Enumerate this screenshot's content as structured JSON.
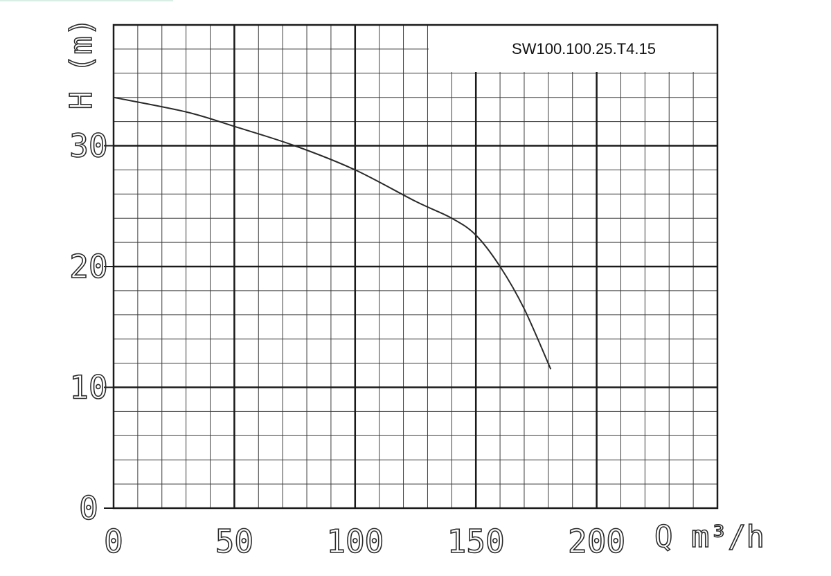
{
  "chart_data": {
    "type": "line",
    "title": "SW100.100.25.T4.15",
    "xlabel": "Q m³/h",
    "ylabel": "H (m)",
    "xlim": [
      0,
      250
    ],
    "ylim": [
      0,
      40
    ],
    "x_ticks": [
      "0",
      "50",
      "100",
      "150",
      "200"
    ],
    "y_ticks": [
      "0",
      "10",
      "20",
      "30"
    ],
    "grid": true,
    "series": [
      {
        "x": [
          0,
          30,
          50,
          75,
          100,
          125,
          140,
          150,
          160,
          170,
          181
        ],
        "y": [
          34,
          32.8,
          31.6,
          30,
          28,
          25.4,
          24,
          22.6,
          20,
          16.5,
          11.5
        ],
        "color": "#2a2a2a"
      }
    ]
  }
}
